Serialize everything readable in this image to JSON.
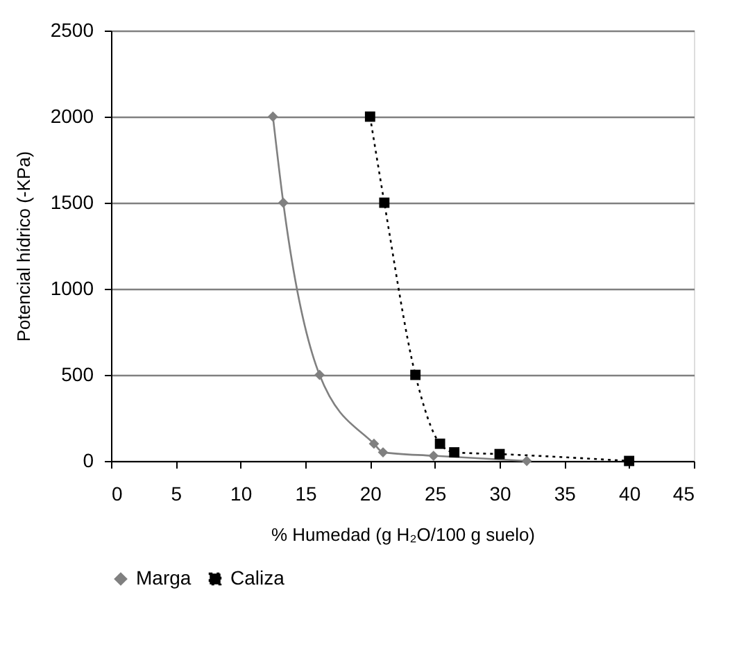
{
  "chart_data": {
    "type": "line",
    "xlabel": "% Humedad (g H₂O/100 g suelo)",
    "ylabel": "Potencial hídrico (-KPa)",
    "xlim": [
      0,
      45
    ],
    "xticks": [
      0,
      5,
      10,
      15,
      20,
      25,
      30,
      35,
      40,
      45
    ],
    "ylim": [
      0,
      2500
    ],
    "yticks": [
      0,
      500,
      {
        "value": 1000,
        "label": "1000"
      },
      {
        "value": 1500,
        "label": "1500"
      },
      {
        "value": 2000,
        "label": "2000"
      },
      {
        "value": 2500,
        "label": "2500"
      }
    ],
    "grid": "y",
    "legend": "bottom",
    "series": [
      {
        "name": "Marga",
        "color": "#808080",
        "marker": "diamond",
        "line_style": "solid",
        "x": [
          12.5,
          13.3,
          16.1,
          20.3,
          21,
          24.9,
          32.1
        ],
        "values": [
          2000,
          1500,
          500,
          100,
          50,
          30,
          0
        ]
      },
      {
        "name": "Caliza",
        "color": "#000000",
        "marker": "square",
        "line_style": "dotted",
        "x": [
          20,
          21.1,
          23.5,
          25.4,
          26.5,
          30,
          40
        ],
        "values": [
          2000,
          1500,
          500,
          100,
          50,
          40,
          0
        ]
      }
    ]
  }
}
